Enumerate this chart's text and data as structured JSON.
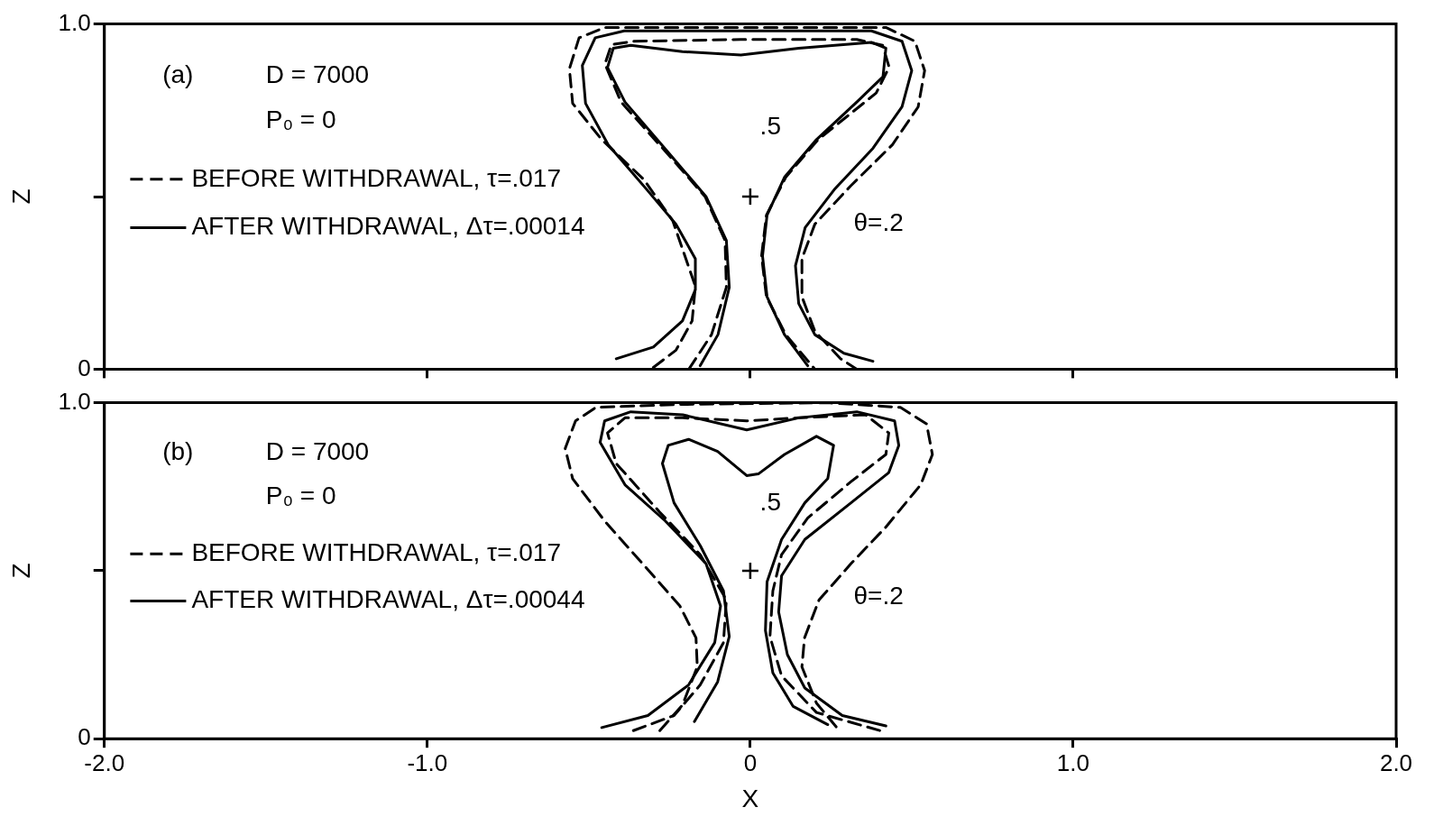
{
  "chart_data": [
    {
      "type": "line",
      "ylabel": "Z",
      "xlim": [
        -2,
        2
      ],
      "ylim": [
        0,
        1
      ],
      "tick_labels": "y",
      "grid": false,
      "legend": "left",
      "xticks": [
        {
          "value": -2,
          "label": null
        },
        {
          "value": -1,
          "label": null
        },
        {
          "value": 0,
          "label": null
        },
        {
          "value": 1,
          "label": null
        },
        {
          "value": 2,
          "label": null
        }
      ],
      "yticks": [
        {
          "value": 0,
          "label": "0"
        },
        {
          "value": 0.5,
          "label": null
        },
        {
          "value": 1,
          "label": "1.0"
        }
      ],
      "annotations": [
        "(a)",
        "D = 7000",
        "P₀ = 0",
        ".5",
        "θ=.2"
      ],
      "series": [
        {
          "name": "BEFORE WITHDRAWAL, τ=.017",
          "color": "#000000",
          "line_style": "dashed",
          "x": [
            -0.3,
            -0.23,
            -0.18,
            -0.17,
            -0.24,
            -0.33,
            -0.46,
            -0.55,
            -0.56,
            -0.53,
            -0.45,
            -0.03,
            0.42,
            0.51,
            0.54,
            0.52,
            0.44,
            0.31,
            0.2,
            0.16,
            0.16,
            0.2,
            0.28,
            0.33
          ],
          "values": [
            0.005,
            0.055,
            0.14,
            0.24,
            0.43,
            0.55,
            0.665,
            0.77,
            0.87,
            0.96,
            0.99,
            0.99,
            0.99,
            0.95,
            0.865,
            0.76,
            0.65,
            0.53,
            0.42,
            0.32,
            0.21,
            0.11,
            0.03,
            0.0
          ]
        },
        {
          "name": "AFTER WITHDRAWAL, Δτ=.00014",
          "color": "#000000",
          "line_style": "solid",
          "x": [
            -0.415,
            -0.3,
            -0.21,
            -0.17,
            -0.17,
            -0.23,
            -0.32,
            -0.44,
            -0.51,
            -0.52,
            -0.48,
            -0.39,
            -0.03,
            0.375,
            0.47,
            0.5,
            0.47,
            0.38,
            0.26,
            0.17,
            0.14,
            0.15,
            0.2,
            0.29,
            0.38
          ],
          "values": [
            0.03,
            0.064,
            0.14,
            0.23,
            0.32,
            0.42,
            0.52,
            0.65,
            0.77,
            0.88,
            0.96,
            0.98,
            0.98,
            0.98,
            0.95,
            0.865,
            0.76,
            0.64,
            0.52,
            0.41,
            0.3,
            0.19,
            0.1,
            0.046,
            0.023
          ]
        },
        {
          "color": "#000000",
          "line_style": "dashed",
          "x": [
            -0.19,
            -0.12,
            -0.074,
            -0.078,
            -0.14,
            -0.26,
            -0.4,
            -0.45,
            -0.43,
            -0.36,
            -0.03,
            0.33,
            0.41,
            0.43,
            0.39,
            0.21,
            0.11,
            0.05,
            0.035,
            0.05,
            0.11,
            0.2
          ],
          "values": [
            0.0,
            0.1,
            0.237,
            0.373,
            0.5,
            0.628,
            0.774,
            0.884,
            0.94,
            0.95,
            0.955,
            0.955,
            0.938,
            0.875,
            0.8,
            0.665,
            0.556,
            0.446,
            0.328,
            0.21,
            0.1,
            0.0
          ]
        },
        {
          "color": "#000000",
          "line_style": "solid",
          "x": [
            -0.155,
            -0.1,
            -0.065,
            -0.074,
            -0.137,
            -0.254,
            -0.388,
            -0.442,
            -0.424,
            -0.37,
            -0.21,
            -0.029,
            0.15,
            0.375,
            0.42,
            0.411,
            0.33,
            0.205,
            0.106,
            0.052,
            0.038,
            0.052,
            0.106,
            0.178
          ],
          "values": [
            0.01,
            0.1,
            0.237,
            0.373,
            0.5,
            0.628,
            0.774,
            0.874,
            0.93,
            0.938,
            0.92,
            0.91,
            0.93,
            0.947,
            0.93,
            0.847,
            0.774,
            0.665,
            0.556,
            0.446,
            0.328,
            0.21,
            0.1,
            0.01
          ]
        },
        {
          "type": "scatter",
          "marker": "cross",
          "color": "#000000",
          "x": [
            0
          ],
          "values": [
            0.5
          ]
        }
      ]
    },
    {
      "type": "line",
      "xlabel": "X",
      "ylabel": "Z",
      "xlim": [
        -2,
        2
      ],
      "ylim": [
        0,
        1
      ],
      "grid": false,
      "legend": "left",
      "xticks": [
        {
          "value": -2,
          "label": "-2.0"
        },
        {
          "value": -1,
          "label": "-1.0"
        },
        {
          "value": 0,
          "label": "0"
        },
        {
          "value": 1,
          "label": "1.0"
        },
        {
          "value": 2,
          "label": "2.0"
        }
      ],
      "yticks": [
        {
          "value": 0,
          "label": "0"
        },
        {
          "value": 0.5,
          "label": null
        },
        {
          "value": 1,
          "label": "1.0"
        }
      ],
      "annotations": [
        "(b)",
        "D = 7000",
        "P₀ = 0",
        ".5",
        "θ=.2"
      ],
      "series": [
        {
          "name": "BEFORE WITHDRAWAL, τ=.017",
          "color": "#000000",
          "line_style": "dashed",
          "x": [
            -0.28,
            -0.21,
            -0.164,
            -0.168,
            -0.218,
            -0.317,
            -0.451,
            -0.55,
            -0.573,
            -0.541,
            -0.478,
            -0.209,
            0.24,
            0.465,
            0.546,
            0.564,
            0.528,
            0.42,
            0.312,
            0.213,
            0.168,
            0.16,
            0.205,
            0.268
          ],
          "values": [
            0.024,
            0.1,
            0.214,
            0.3,
            0.395,
            0.503,
            0.648,
            0.774,
            0.864,
            0.946,
            0.986,
            0.995,
            1.0,
            0.986,
            0.937,
            0.846,
            0.756,
            0.63,
            0.521,
            0.413,
            0.3,
            0.214,
            0.106,
            0.033
          ]
        },
        {
          "name": "AFTER WITHDRAWAL, Δτ=.00044",
          "color": "#000000",
          "line_style": "solid",
          "x": [
            -0.46,
            -0.317,
            -0.191,
            -0.11,
            -0.092,
            -0.137,
            -0.263,
            -0.388,
            -0.465,
            -0.451,
            -0.37,
            -0.209,
            -0.011,
            0.15,
            0.33,
            0.447,
            0.46,
            0.429,
            0.312,
            0.169,
            0.097,
            0.088,
            0.115,
            0.169,
            0.285,
            0.42
          ],
          "values": [
            0.033,
            0.069,
            0.16,
            0.286,
            0.395,
            0.521,
            0.648,
            0.756,
            0.882,
            0.946,
            0.973,
            0.964,
            0.919,
            0.955,
            0.973,
            0.946,
            0.873,
            0.792,
            0.702,
            0.593,
            0.485,
            0.377,
            0.25,
            0.151,
            0.069,
            0.038
          ]
        },
        {
          "color": "#000000",
          "line_style": "dashed",
          "x": [
            -0.362,
            -0.236,
            -0.155,
            -0.083,
            -0.074,
            -0.155,
            -0.281,
            -0.415,
            -0.442,
            -0.388,
            -0.209,
            -0.011,
            0.15,
            0.357,
            0.429,
            0.42,
            0.312,
            0.178,
            0.097,
            0.07,
            0.061,
            0.097,
            0.205,
            0.402
          ],
          "values": [
            0.024,
            0.069,
            0.16,
            0.286,
            0.413,
            0.548,
            0.675,
            0.819,
            0.91,
            0.955,
            0.955,
            0.946,
            0.955,
            0.964,
            0.91,
            0.846,
            0.765,
            0.657,
            0.548,
            0.44,
            0.304,
            0.187,
            0.078,
            0.024
          ]
        },
        {
          "color": "#000000",
          "line_style": "solid",
          "x": [
            -0.173,
            -0.101,
            -0.065,
            -0.083,
            -0.155,
            -0.236,
            -0.272,
            -0.254,
            -0.191,
            -0.101,
            -0.011,
            0.025,
            0.106,
            0.205,
            0.258,
            0.24,
            0.169,
            0.097,
            0.052,
            0.047,
            0.07,
            0.133,
            0.24
          ],
          "values": [
            0.051,
            0.169,
            0.304,
            0.44,
            0.575,
            0.702,
            0.819,
            0.873,
            0.891,
            0.855,
            0.783,
            0.788,
            0.846,
            0.9,
            0.873,
            0.774,
            0.702,
            0.593,
            0.467,
            0.322,
            0.196,
            0.096,
            0.042
          ]
        },
        {
          "type": "scatter",
          "marker": "cross",
          "color": "#000000",
          "x": [
            0
          ],
          "values": [
            0.5
          ]
        }
      ]
    }
  ]
}
